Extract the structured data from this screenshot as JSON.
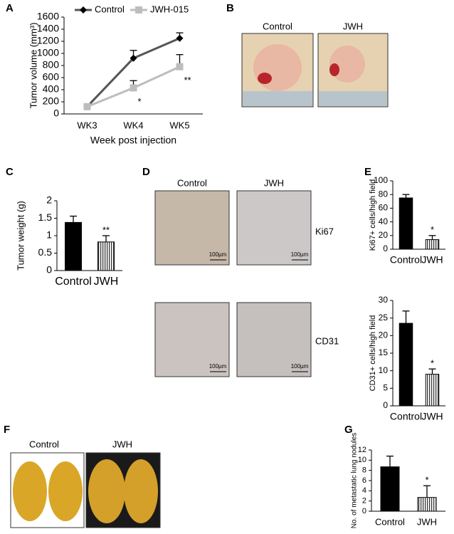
{
  "chart_data": [
    {
      "type": "line",
      "label": "A",
      "y_label": "Tumor volume (mm³)",
      "x_label": "Week post injection",
      "categories": [
        "WK3",
        "WK4",
        "WK5"
      ],
      "series": [
        {
          "name": "Control",
          "color": "#555555",
          "marker": "diamond",
          "values": [
            120,
            920,
            1250
          ],
          "errors": [
            null,
            130,
            90
          ],
          "annotations": [
            null,
            null,
            null
          ]
        },
        {
          "name": "JWH-015",
          "color": "#bdbdbd",
          "marker": "square",
          "values": [
            120,
            430,
            780
          ],
          "errors": [
            null,
            120,
            200
          ],
          "annotations": [
            null,
            "*",
            "**"
          ]
        }
      ],
      "ylim": [
        0,
        1600
      ],
      "yticks": [
        0,
        200,
        400,
        600,
        800,
        1000,
        1200,
        1400,
        1600
      ],
      "legend": "top"
    },
    {
      "type": "bar",
      "label": "C",
      "y_label": "Tumor weight (g)",
      "categories": [
        "Control",
        "JWH"
      ],
      "values": [
        1.38,
        0.82
      ],
      "errors": [
        0.18,
        0.18
      ],
      "annotations": [
        null,
        "**"
      ],
      "color": "#000000",
      "patterns": [
        "solid",
        "vertical-stripes"
      ],
      "ylim": [
        0,
        2
      ],
      "yticks": [
        0,
        0.5,
        1,
        1.5,
        2
      ]
    },
    {
      "type": "bar",
      "label": "E",
      "y_label": "Ki67+ cells/high field",
      "categories": [
        "Control",
        "JWH"
      ],
      "values": [
        75,
        14
      ],
      "errors": [
        5,
        6
      ],
      "annotations": [
        null,
        "*"
      ],
      "color": "#000000",
      "patterns": [
        "solid",
        "vertical-stripes"
      ],
      "ylim": [
        0,
        100
      ],
      "yticks": [
        0,
        20,
        40,
        60,
        80,
        100
      ]
    },
    {
      "type": "bar",
      "y_label": "CD31+ cells/high field",
      "categories": [
        "Control",
        "JWH"
      ],
      "values": [
        23.5,
        9
      ],
      "errors": [
        3.5,
        1.5
      ],
      "annotations": [
        null,
        "*"
      ],
      "color": "#000000",
      "patterns": [
        "solid",
        "vertical-stripes"
      ],
      "ylim": [
        0,
        30
      ],
      "yticks": [
        0,
        5,
        10,
        15,
        20,
        25,
        30
      ]
    },
    {
      "type": "bar",
      "label": "G",
      "y_label": "No. of metastatic lung nodules",
      "categories": [
        "Control",
        "JWH"
      ],
      "values": [
        8.7,
        2.7
      ],
      "errors": [
        2.1,
        2.3
      ],
      "annotations": [
        null,
        "*"
      ],
      "color": "#000000",
      "patterns": [
        "solid",
        "vertical-stripes"
      ],
      "ylim": [
        0,
        12
      ],
      "yticks": [
        0,
        2,
        4,
        6,
        8,
        10,
        12
      ]
    }
  ],
  "images": [
    {
      "label": "B",
      "captions": [
        "Control",
        "JWH"
      ]
    },
    {
      "label": "D",
      "captions": [
        "Control",
        "JWH"
      ],
      "rows": [
        "Ki67",
        "CD31"
      ],
      "scale_bar": "100µm"
    },
    {
      "label": "F",
      "captions": [
        "Control",
        "JWH"
      ]
    }
  ]
}
